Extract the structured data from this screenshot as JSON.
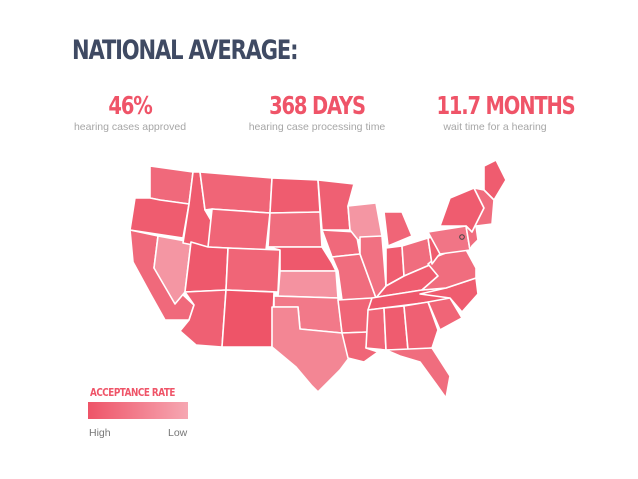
{
  "header": {
    "title": "NATIONAL AVERAGE:"
  },
  "stats": [
    {
      "value": "46%",
      "label": "hearing cases approved"
    },
    {
      "value": "368 DAYS",
      "label": "hearing case processing time"
    },
    {
      "value": "11.7 MONTHS",
      "label": "wait time for a hearing"
    }
  ],
  "legend": {
    "title": "ACCEPTANCE RATE",
    "high_label": "High",
    "low_label": "Low",
    "high_color": "#ee5468",
    "low_color": "#f6a7b2"
  },
  "colors": {
    "title": "#3f4a63",
    "accent": "#ef5468",
    "border": "#ffffff"
  },
  "map_shading": {
    "WA": 0.25,
    "OR": 0.1,
    "CA": 0.25,
    "NV": 0.8,
    "ID": 0.1,
    "MT": 0.2,
    "WY": 0.2,
    "UT": 0.05,
    "AZ": 0.15,
    "CO": 0.2,
    "NM": 0.0,
    "ND": 0.1,
    "SD": 0.3,
    "NE": 0.05,
    "KS": 0.75,
    "OK": 0.45,
    "TX": 0.6,
    "MN": 0.15,
    "IA": 0.25,
    "MO": 0.3,
    "AR": 0.2,
    "LA": 0.2,
    "WI": 0.8,
    "IL": 0.35,
    "MI": 0.2,
    "IN": 0.1,
    "OH": 0.3,
    "KY": 0.1,
    "TN": 0.05,
    "MS": 0.2,
    "AL": 0.1,
    "GA": 0.15,
    "FL": 0.3,
    "SC": 0.2,
    "NC": 0.1,
    "VA": 0.3,
    "WV": 0.1,
    "PA": 0.4,
    "NY": 0.1,
    "ME": 0.1,
    "NE_states": 0.3
  }
}
